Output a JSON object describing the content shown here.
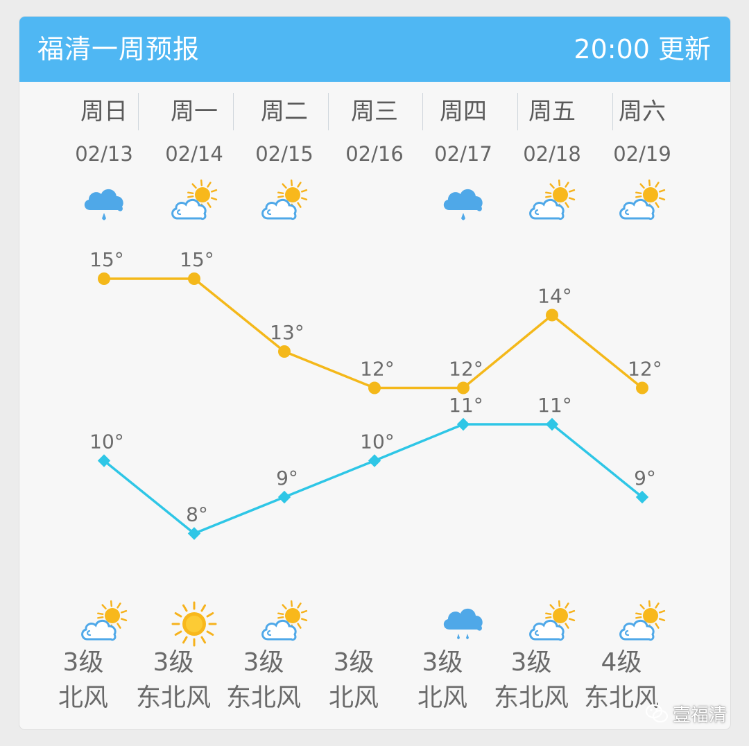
{
  "header": {
    "title": "福清一周预报",
    "update_time": "20:00 更新",
    "color": "#4fb7f3"
  },
  "days": [
    {
      "weekday": "周日",
      "date": "02/13",
      "day_icon": "rain-cloud-icon",
      "night_icon": "partly-cloudy-icon",
      "wind_level": "3级",
      "wind_dir": "北风"
    },
    {
      "weekday": "周一",
      "date": "02/14",
      "day_icon": "partly-cloudy-icon",
      "night_icon": "sun-icon",
      "wind_level": "3级",
      "wind_dir": "东北风"
    },
    {
      "weekday": "周二",
      "date": "02/15",
      "day_icon": "partly-cloudy-icon",
      "night_icon": "partly-cloudy-icon",
      "wind_level": "3级",
      "wind_dir": "东北风"
    },
    {
      "weekday": "周三",
      "date": "02/16",
      "day_icon": "",
      "night_icon": "",
      "wind_level": "3级",
      "wind_dir": "北风"
    },
    {
      "weekday": "周四",
      "date": "02/17",
      "day_icon": "rain-cloud-icon",
      "night_icon": "heavy-rain-cloud-icon",
      "wind_level": "3级",
      "wind_dir": "北风"
    },
    {
      "weekday": "周五",
      "date": "02/18",
      "day_icon": "partly-cloudy-icon",
      "night_icon": "partly-cloudy-icon",
      "wind_level": "3级",
      "wind_dir": "东北风"
    },
    {
      "weekday": "周六",
      "date": "02/19",
      "day_icon": "partly-cloudy-icon",
      "night_icon": "partly-cloudy-icon",
      "wind_level": "4级",
      "wind_dir": "东北风"
    }
  ],
  "chart_data": {
    "type": "line",
    "categories": [
      "02/13",
      "02/14",
      "02/15",
      "02/16",
      "02/17",
      "02/18",
      "02/19"
    ],
    "series": [
      {
        "values": [
          15,
          15,
          13,
          12,
          12,
          14,
          12
        ],
        "color": "#f4b81a",
        "marker": "circle"
      },
      {
        "values": [
          10,
          8,
          9,
          10,
          11,
          11,
          9
        ],
        "color": "#2ec6e6",
        "marker": "diamond"
      }
    ],
    "value_suffix": "°"
  },
  "watermark": {
    "text": "壹福清",
    "icon": "wechat-icon"
  }
}
